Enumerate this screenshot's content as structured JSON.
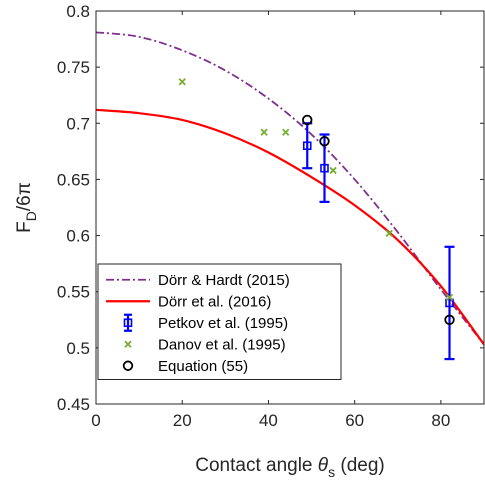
{
  "chart_data": {
    "type": "line",
    "xlabel": "Contact angle θs (deg)",
    "xlabel_parts": {
      "pre": "Contact angle ",
      "symbol": "θ",
      "sub": "s",
      "post": " (deg)"
    },
    "ylabel": "FD/6π",
    "ylabel_parts": {
      "main": "F",
      "sub": "D",
      "post": "/6π"
    },
    "xlim": [
      0,
      90
    ],
    "ylim": [
      0.45,
      0.8
    ],
    "xticks": [
      0,
      20,
      40,
      60,
      80
    ],
    "yticks": [
      0.45,
      0.5,
      0.55,
      0.6,
      0.65,
      0.7,
      0.75,
      0.8
    ],
    "ytick_labels": [
      "0.45",
      "0.5",
      "0.55",
      "0.6",
      "0.65",
      "0.7",
      "0.75",
      "0.8"
    ],
    "grid": false,
    "legend_position": "bottom-left",
    "series": [
      {
        "name": "Dörr & Hardt (2015)",
        "kind": "line",
        "style": "dash-dot",
        "color": "#7E2F8E",
        "x": [
          0,
          10,
          20,
          30,
          40,
          50,
          60,
          70,
          80,
          90
        ],
        "y": [
          0.781,
          0.777,
          0.765,
          0.747,
          0.722,
          0.69,
          0.65,
          0.603,
          0.552,
          0.503
        ]
      },
      {
        "name": "Dörr et al. (2016)",
        "kind": "line",
        "style": "solid",
        "color": "#FF0000",
        "x": [
          0,
          10,
          20,
          30,
          40,
          50,
          60,
          70,
          80,
          90
        ],
        "y": [
          0.712,
          0.709,
          0.703,
          0.691,
          0.674,
          0.652,
          0.627,
          0.596,
          0.555,
          0.503
        ]
      },
      {
        "name": "Petkov et al. (1995)",
        "kind": "errorbar",
        "marker": "square",
        "color": "#0000FF",
        "x": [
          49,
          53,
          82
        ],
        "y": [
          0.68,
          0.66,
          0.54
        ],
        "err": [
          0.02,
          0.03,
          0.05
        ]
      },
      {
        "name": "Danov et al. (1995)",
        "kind": "scatter",
        "marker": "x",
        "color": "#77AC30",
        "x": [
          20,
          39,
          44,
          55,
          68,
          82
        ],
        "y": [
          0.737,
          0.692,
          0.692,
          0.658,
          0.602,
          0.545
        ]
      },
      {
        "name": "Equation (55)",
        "kind": "scatter",
        "marker": "circle",
        "color": "#000000",
        "x": [
          49,
          53,
          82
        ],
        "y": [
          0.703,
          0.684,
          0.525
        ]
      }
    ]
  }
}
